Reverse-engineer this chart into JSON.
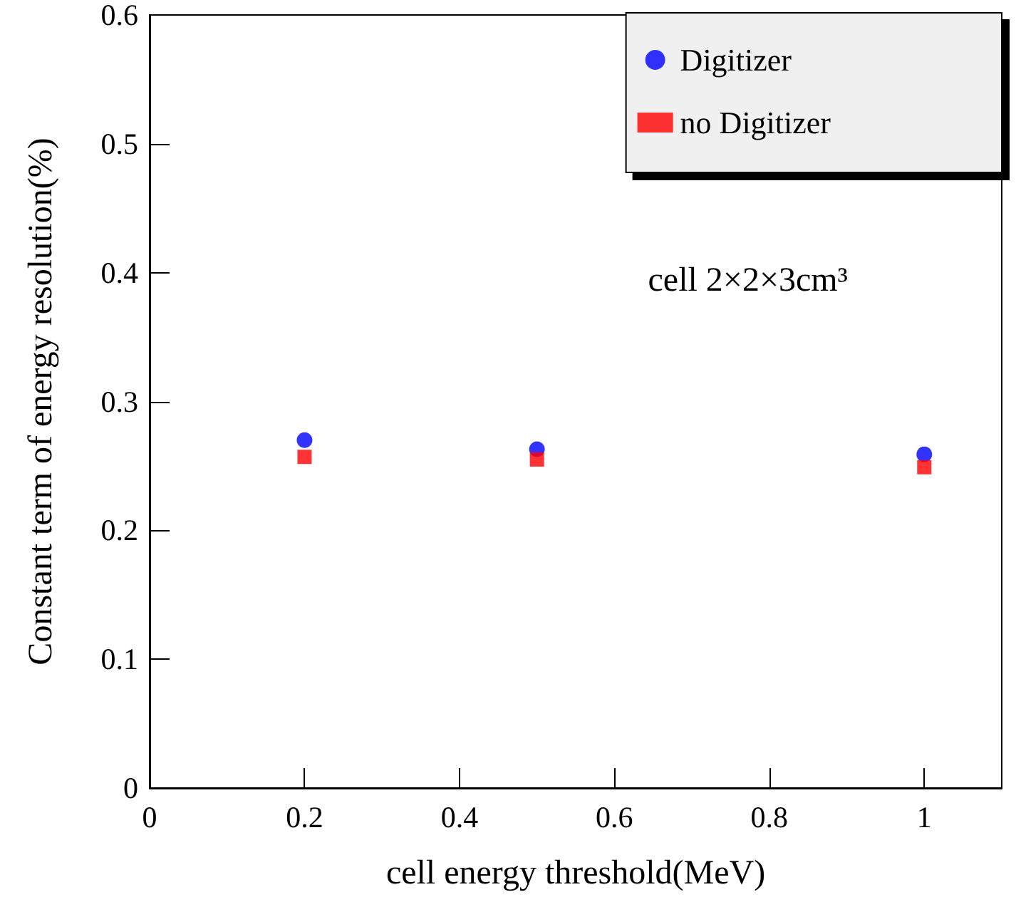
{
  "chart_data": {
    "type": "scatter",
    "xlabel": "cell energy threshold(MeV)",
    "ylabel": "Constant term of energy resolution(%)",
    "x": [
      0.2,
      0.5,
      1
    ],
    "series": [
      {
        "name": "Digitizer",
        "color": "#0000ff",
        "marker": "circle",
        "values": [
          0.27,
          0.263,
          0.259
        ]
      },
      {
        "name": "no Digitizer",
        "color": "#ff0000",
        "marker": "square",
        "values": [
          0.257,
          0.255,
          0.249
        ]
      }
    ],
    "xlim": [
      0,
      1.1
    ],
    "xticks": [
      0,
      0.2,
      0.4,
      0.6,
      0.8,
      1
    ],
    "ylim": [
      0,
      0.6
    ],
    "yticks": [
      0,
      0.1,
      0.2,
      0.3,
      0.4,
      0.5,
      0.6
    ],
    "legend": "top right",
    "grid": false,
    "annotations": [
      "cell 2×2×3cm³"
    ]
  }
}
